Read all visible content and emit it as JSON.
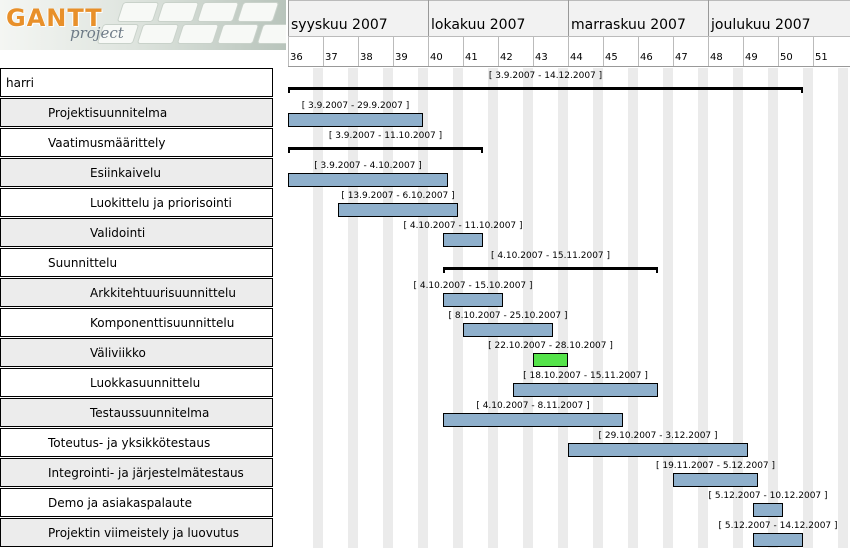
{
  "app": {
    "logo_text": "GANTT",
    "logo_subtext": "project"
  },
  "timeline": {
    "months": [
      {
        "label": "syyskuu 2007",
        "start_week": 36
      },
      {
        "label": "lokakuu 2007",
        "start_week": 40
      },
      {
        "label": "marraskuu 2007",
        "start_week": 44
      },
      {
        "label": "joulukuu 2007",
        "start_week": 48
      }
    ],
    "weeks": [
      "36",
      "37",
      "38",
      "39",
      "40",
      "41",
      "42",
      "43",
      "44",
      "45",
      "46",
      "47",
      "48",
      "49",
      "50",
      "51"
    ],
    "first_week": 36,
    "last_week": 51
  },
  "tasks": [
    {
      "name": "harri",
      "indent": 0,
      "type": "summary",
      "start": "2007-09-03",
      "end": "2007-12-14",
      "label": "[ 3.9.2007 - 14.12.2007 ]"
    },
    {
      "name": "Projektisuunnitelma",
      "indent": 1,
      "type": "task",
      "start": "2007-09-03",
      "end": "2007-09-29",
      "label": "[ 3.9.2007 - 29.9.2007 ]"
    },
    {
      "name": "Vaatimusmäärittely",
      "indent": 1,
      "type": "summary",
      "start": "2007-09-03",
      "end": "2007-10-11",
      "label": "[ 3.9.2007 - 11.10.2007 ]"
    },
    {
      "name": "Esiinkaivelu",
      "indent": 2,
      "type": "task",
      "start": "2007-09-03",
      "end": "2007-10-04",
      "label": "[ 3.9.2007 - 4.10.2007 ]"
    },
    {
      "name": "Luokittelu ja priorisointi",
      "indent": 2,
      "type": "task",
      "start": "2007-09-13",
      "end": "2007-10-06",
      "label": "[ 13.9.2007 - 6.10.2007 ]"
    },
    {
      "name": "Validointi",
      "indent": 2,
      "type": "task",
      "start": "2007-10-04",
      "end": "2007-10-11",
      "label": "[ 4.10.2007 - 11.10.2007 ]"
    },
    {
      "name": "Suunnittelu",
      "indent": 1,
      "type": "summary",
      "start": "2007-10-04",
      "end": "2007-11-15",
      "label": "[ 4.10.2007 - 15.11.2007 ]"
    },
    {
      "name": "Arkkitehtuurisuunnittelu",
      "indent": 2,
      "type": "task",
      "start": "2007-10-04",
      "end": "2007-10-15",
      "label": "[ 4.10.2007 - 15.10.2007 ]"
    },
    {
      "name": "Komponenttisuunnittelu",
      "indent": 2,
      "type": "task",
      "start": "2007-10-08",
      "end": "2007-10-25",
      "label": "[ 8.10.2007 - 25.10.2007 ]"
    },
    {
      "name": "Väliviikko",
      "indent": 2,
      "type": "milestone",
      "start": "2007-10-22",
      "end": "2007-10-28",
      "label": "[ 22.10.2007 - 28.10.2007 ]"
    },
    {
      "name": "Luokkasuunnittelu",
      "indent": 2,
      "type": "task",
      "start": "2007-10-18",
      "end": "2007-11-15",
      "label": "[ 18.10.2007 - 15.11.2007 ]"
    },
    {
      "name": "Testaussuunnitelma",
      "indent": 2,
      "type": "task",
      "start": "2007-10-04",
      "end": "2007-11-08",
      "label": "[ 4.10.2007 - 8.11.2007 ]"
    },
    {
      "name": "Toteutus- ja yksikkötestaus",
      "indent": 1,
      "type": "task",
      "start": "2007-10-29",
      "end": "2007-12-03",
      "label": "[ 29.10.2007 - 3.12.2007 ]"
    },
    {
      "name": "Integrointi- ja järjestelmätestaus",
      "indent": 1,
      "type": "task",
      "start": "2007-11-19",
      "end": "2007-12-05",
      "label": "[ 19.11.2007 - 5.12.2007 ]"
    },
    {
      "name": "Demo ja asiakaspalaute",
      "indent": 1,
      "type": "task",
      "start": "2007-12-05",
      "end": "2007-12-10",
      "label": "[ 5.12.2007 - 10.12.2007 ]"
    },
    {
      "name": "Projektin viimeistely ja luovutus",
      "indent": 1,
      "type": "task",
      "start": "2007-12-05",
      "end": "2007-12-14",
      "label": "[ 5.12.2007 - 14.12.2007 ]"
    }
  ],
  "colors": {
    "task_bar": "#8fb0cc",
    "task_bar_border": "#000000",
    "milestone_bar": "#55e34a",
    "weekend_stripe": "#ebebeb",
    "header_bg": "#f2f2f2",
    "logo_orange": "#e8902a"
  }
}
